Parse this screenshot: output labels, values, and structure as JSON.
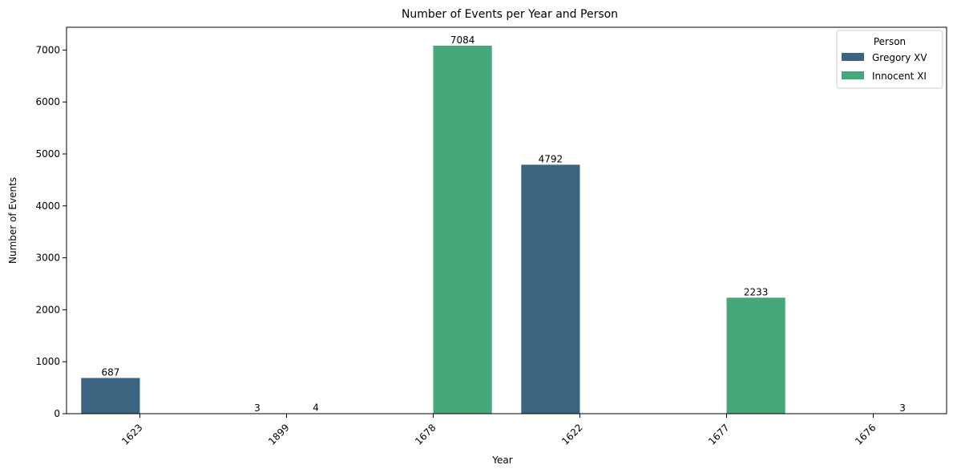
{
  "chart_data": {
    "type": "bar",
    "title": "Number of Events per Year and Person",
    "xlabel": "Year",
    "ylabel": "Number of Events",
    "categories": [
      "1623",
      "1899",
      "1678",
      "1622",
      "1677",
      "1676"
    ],
    "series": [
      {
        "name": "Gregory XV",
        "color": "#3b6480",
        "values": [
          687,
          3,
          null,
          4792,
          null,
          null
        ]
      },
      {
        "name": "Innocent XI",
        "color": "#44a878",
        "values": [
          null,
          4,
          7084,
          null,
          2233,
          3
        ]
      }
    ],
    "ylim": [
      0,
      7438
    ],
    "yticks": [
      0,
      1000,
      2000,
      3000,
      4000,
      5000,
      6000,
      7000
    ],
    "grid": false,
    "legend": {
      "title": "Person",
      "position": "top-right"
    },
    "x_tick_rotation_deg": 45
  }
}
